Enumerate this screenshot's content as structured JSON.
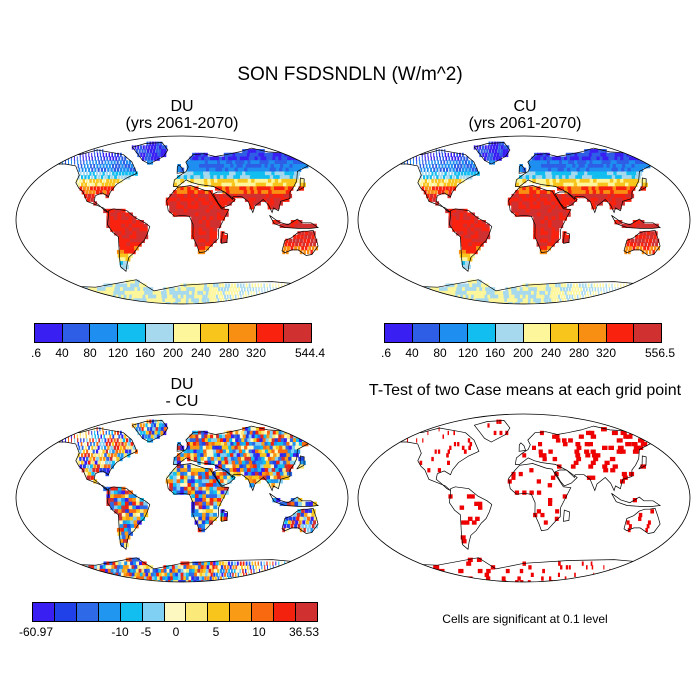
{
  "figure_title": "SON FSDSNDLN (W/m^2)",
  "panels": {
    "du": {
      "title": "DU",
      "subtitle": "(yrs 2061-2070)"
    },
    "cu": {
      "title": "CU",
      "subtitle": "(yrs 2061-2070)"
    },
    "diff": {
      "title": "DU",
      "subtitle": "- CU"
    },
    "ttest": {
      "title": "T-Test of two Case means at each grid point",
      "note": "Cells are significant at 0.1 level"
    }
  },
  "colorbars": {
    "du": {
      "labels": [
        ".6",
        "40",
        "80",
        "120",
        "160",
        "200",
        "240",
        "280",
        "320",
        "544.4"
      ],
      "colors": [
        "#3a1ff2",
        "#2e5ee6",
        "#1e8ff0",
        "#12bdf0",
        "#a6d8ee",
        "#fdf69a",
        "#f8c51c",
        "#f98f12",
        "#f9220e",
        "#d13030"
      ]
    },
    "cu": {
      "labels": [
        ".6",
        "40",
        "80",
        "120",
        "160",
        "200",
        "240",
        "280",
        "320",
        "556.5"
      ],
      "colors": [
        "#3a1ff2",
        "#2e5ee6",
        "#1e8ff0",
        "#12bdf0",
        "#a6d8ee",
        "#fdf69a",
        "#f8c51c",
        "#f98f12",
        "#f9220e",
        "#d13030"
      ]
    },
    "diff": {
      "labels": [
        "-60.97",
        "-10",
        "-5",
        "0",
        "5",
        "10",
        "36.53"
      ],
      "colors": [
        "#3a1ff2",
        "#2040e8",
        "#2e6ae8",
        "#2196f0",
        "#12bdf0",
        "#7fd0f2",
        "#fdf8c0",
        "#fbe97a",
        "#f8c51c",
        "#f99b14",
        "#f96a10",
        "#f2220e",
        "#d13030"
      ]
    }
  },
  "colors": {
    "land_outline": "#000000",
    "significant": "#ee0000",
    "ocean": "#ffffff"
  }
}
